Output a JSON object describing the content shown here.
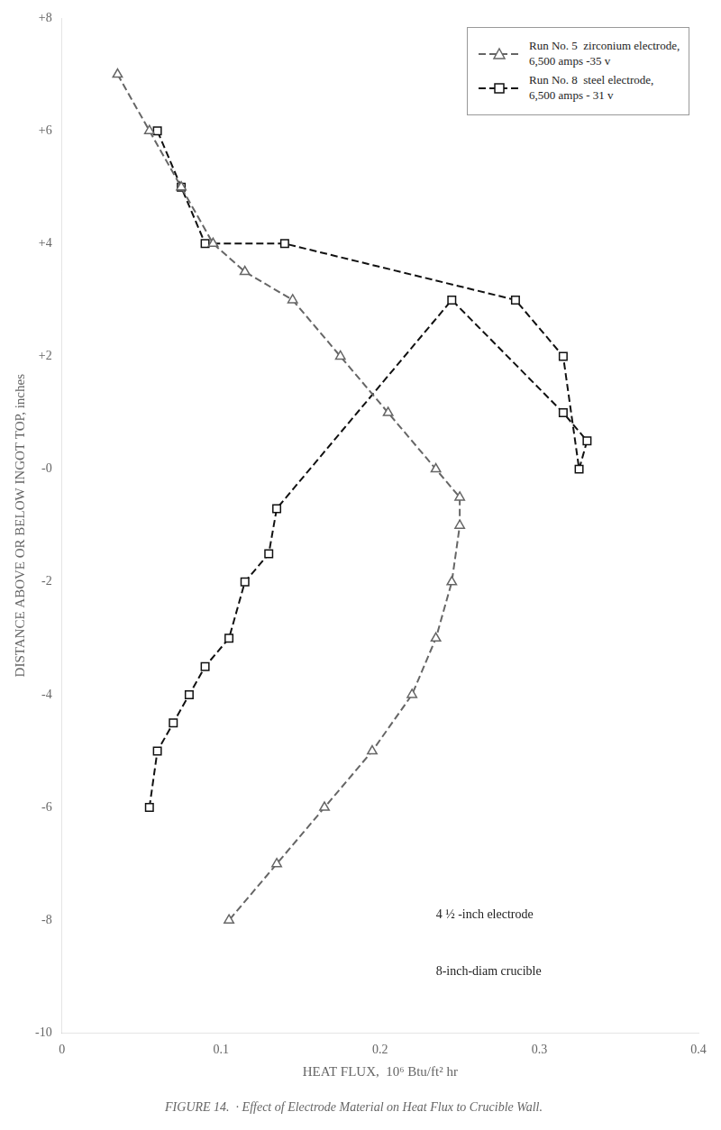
{
  "chart_data": {
    "type": "line",
    "x_label": "HEAT FLUX,  10⁶ Btu/ft² hr",
    "y_label": "DISTANCE ABOVE OR BELOW INGOT TOP, inches",
    "caption": "FIGURE 14.  · Effect of Electrode Material on Heat Flux to Crucible Wall.",
    "series": [
      {
        "name": "Run No. 5  zirconium electrode,\n6,500 amps -35 v",
        "color": "#666666",
        "marker": "triangle",
        "line_style": "dashed",
        "x": [
          0.035,
          0.055,
          0.075,
          0.095,
          0.115,
          0.145,
          0.175,
          0.205,
          0.235,
          0.25,
          0.25,
          0.245,
          0.235,
          0.22,
          0.195,
          0.165,
          0.135,
          0.105
        ],
        "values": [
          7.0,
          6.0,
          5.0,
          4.0,
          3.5,
          3.0,
          2.0,
          1.0,
          0.0,
          -0.5,
          -1.0,
          -2.0,
          -3.0,
          -4.0,
          -5.0,
          -6.0,
          -7.0,
          -8.0
        ]
      },
      {
        "name": "Run No. 8  steel electrode,\n6,500 amps - 31 v",
        "color": "#111111",
        "marker": "square",
        "line_style": "dashed",
        "x": [
          0.055,
          0.06,
          0.07,
          0.08,
          0.09,
          0.105,
          0.115,
          0.13,
          0.135,
          0.245,
          0.315,
          0.33,
          0.325,
          0.315,
          0.285,
          0.14,
          0.09,
          0.075,
          0.06
        ],
        "values": [
          -6.0,
          -5.0,
          -4.5,
          -4.0,
          -3.5,
          -3.0,
          -2.0,
          -1.5,
          -0.7,
          3.0,
          1.0,
          0.5,
          0.0,
          2.0,
          3.0,
          4.0,
          4.0,
          5.0,
          6.0
        ]
      }
    ],
    "xlim": [
      0,
      0.4
    ],
    "xticks": [
      0,
      0.1,
      0.2,
      0.3,
      0.4
    ],
    "ylim": [
      -10,
      8
    ],
    "yticks": [
      -10,
      -8,
      -6,
      -4,
      -2,
      {
        "value": 0,
        "label": "-0"
      },
      {
        "value": 2,
        "label": "+2"
      },
      {
        "value": 4,
        "label": "+4"
      },
      {
        "value": 6,
        "label": "+6"
      },
      {
        "value": 8,
        "label": "+8"
      }
    ],
    "annotations": [
      {
        "text": "4 ½ -inch electrode",
        "x": 0.235,
        "y": -7.8
      },
      {
        "text": "8-inch-diam crucible",
        "x": 0.235,
        "y": -8.8
      }
    ],
    "legend": "upper right",
    "grid": false
  }
}
